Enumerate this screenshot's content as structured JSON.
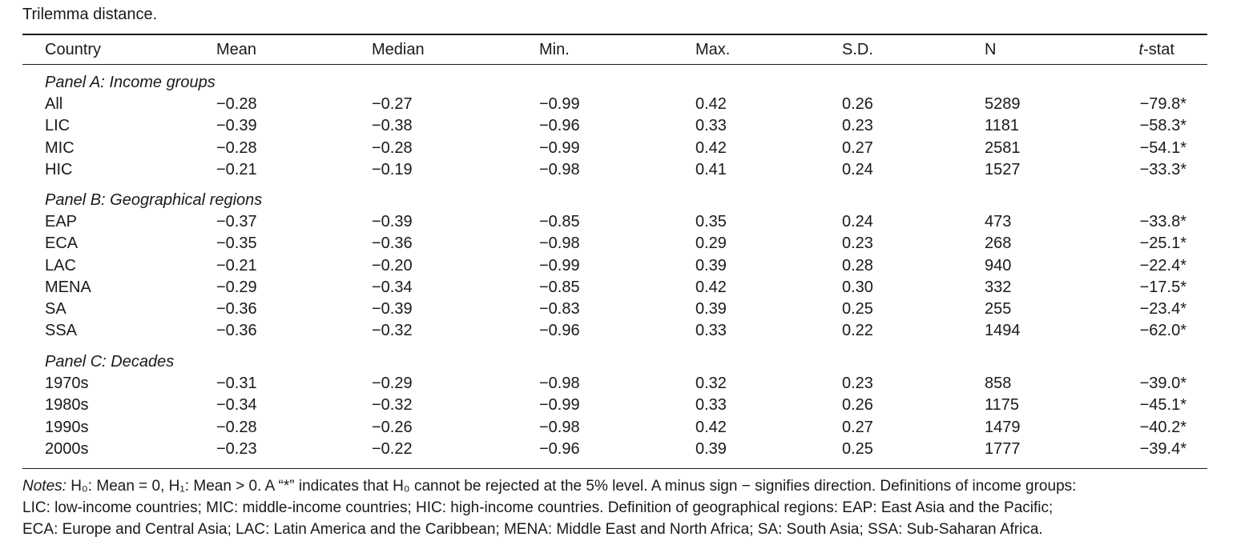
{
  "caption": "Trilemma distance.",
  "header": {
    "country": "Country",
    "mean": "Mean",
    "median": "Median",
    "min": "Min.",
    "max": "Max.",
    "sd": "S.D.",
    "n": "N",
    "t_italic": "t",
    "t_suffix": "-stat"
  },
  "panels": [
    {
      "title": "Panel A: Income groups",
      "rows": [
        [
          "All",
          "−0.28",
          "−0.27",
          "−0.99",
          "0.42",
          "0.26",
          "5289",
          "−79.8*"
        ],
        [
          "LIC",
          "−0.39",
          "−0.38",
          "−0.96",
          "0.33",
          "0.23",
          "1181",
          "−58.3*"
        ],
        [
          "MIC",
          "−0.28",
          "−0.28",
          "−0.99",
          "0.42",
          "0.27",
          "2581",
          "−54.1*"
        ],
        [
          "HIC",
          "−0.21",
          "−0.19",
          "−0.98",
          "0.41",
          "0.24",
          "1527",
          "−33.3*"
        ]
      ]
    },
    {
      "title": "Panel B: Geographical regions",
      "rows": [
        [
          "EAP",
          "−0.37",
          "−0.39",
          "−0.85",
          "0.35",
          "0.24",
          "473",
          "−33.8*"
        ],
        [
          "ECA",
          "−0.35",
          "−0.36",
          "−0.98",
          "0.29",
          "0.23",
          "268",
          "−25.1*"
        ],
        [
          "LAC",
          "−0.21",
          "−0.20",
          "−0.99",
          "0.39",
          "0.28",
          "940",
          "−22.4*"
        ],
        [
          "MENA",
          "−0.29",
          "−0.34",
          "−0.85",
          "0.42",
          "0.30",
          "332",
          "−17.5*"
        ],
        [
          "SA",
          "−0.36",
          "−0.39",
          "−0.83",
          "0.39",
          "0.25",
          "255",
          "−23.4*"
        ],
        [
          "SSA",
          "−0.36",
          "−0.32",
          "−0.96",
          "0.33",
          "0.22",
          "1494",
          "−62.0*"
        ]
      ]
    },
    {
      "title": "Panel C: Decades",
      "rows": [
        [
          "1970s",
          "−0.31",
          "−0.29",
          "−0.98",
          "0.32",
          "0.23",
          "858",
          "−39.0*"
        ],
        [
          "1980s",
          "−0.34",
          "−0.32",
          "−0.99",
          "0.33",
          "0.26",
          "1175",
          "−45.1*"
        ],
        [
          "1990s",
          "−0.28",
          "−0.26",
          "−0.98",
          "0.42",
          "0.27",
          "1479",
          "−40.2*"
        ],
        [
          "2000s",
          "−0.23",
          "−0.22",
          "−0.96",
          "0.39",
          "0.25",
          "1777",
          "−39.4*"
        ]
      ]
    }
  ],
  "notes": {
    "label": "Notes:",
    "line1": "H₀: Mean = 0, H₁: Mean > 0. A “*” indicates that H₀ cannot be rejected at the 5% level. A minus sign − signifies direction. Definitions of income groups:",
    "line2": "LIC: low-income countries; MIC: middle-income countries; HIC: high-income countries. Definition of geographical regions: EAP: East Asia and the Pacific;",
    "line3": "ECA: Europe and Central Asia; LAC: Latin America and the Caribbean; MENA: Middle East and North Africa; SA: South Asia; SSA: Sub-Saharan Africa."
  }
}
